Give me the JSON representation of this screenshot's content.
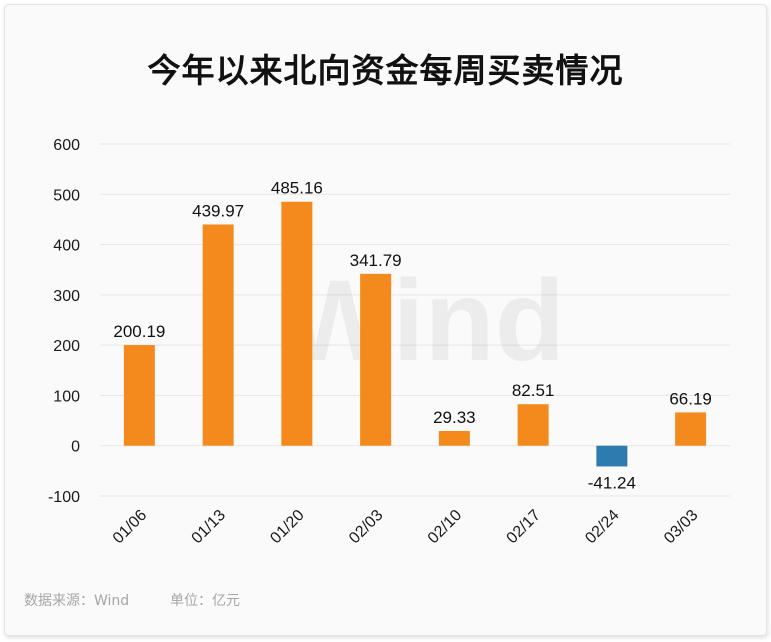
{
  "chart_data": {
    "type": "bar",
    "title": "今年以来北向资金每周买卖情况",
    "categories": [
      "01/06",
      "01/13",
      "01/20",
      "02/03",
      "02/10",
      "02/17",
      "02/24",
      "03/03"
    ],
    "values": [
      200.19,
      439.97,
      485.16,
      341.79,
      29.33,
      82.51,
      -41.24,
      66.19
    ],
    "value_labels": [
      "200.19",
      "439.97",
      "485.16",
      "341.79",
      "29.33",
      "82.51",
      "-41.24",
      "66.19"
    ],
    "yticks": [
      600,
      500,
      400,
      300,
      200,
      100,
      0,
      -100
    ],
    "ylim": [
      -100,
      600
    ],
    "xlabel": "",
    "ylabel": "",
    "grid": true,
    "colors": {
      "positive": "#f48a1e",
      "negative": "#2e7bb0",
      "grid": "#e6e6e6"
    },
    "watermark": "Wind"
  },
  "footer": {
    "source": "数据来源：Wind",
    "unit": "单位：亿元"
  }
}
